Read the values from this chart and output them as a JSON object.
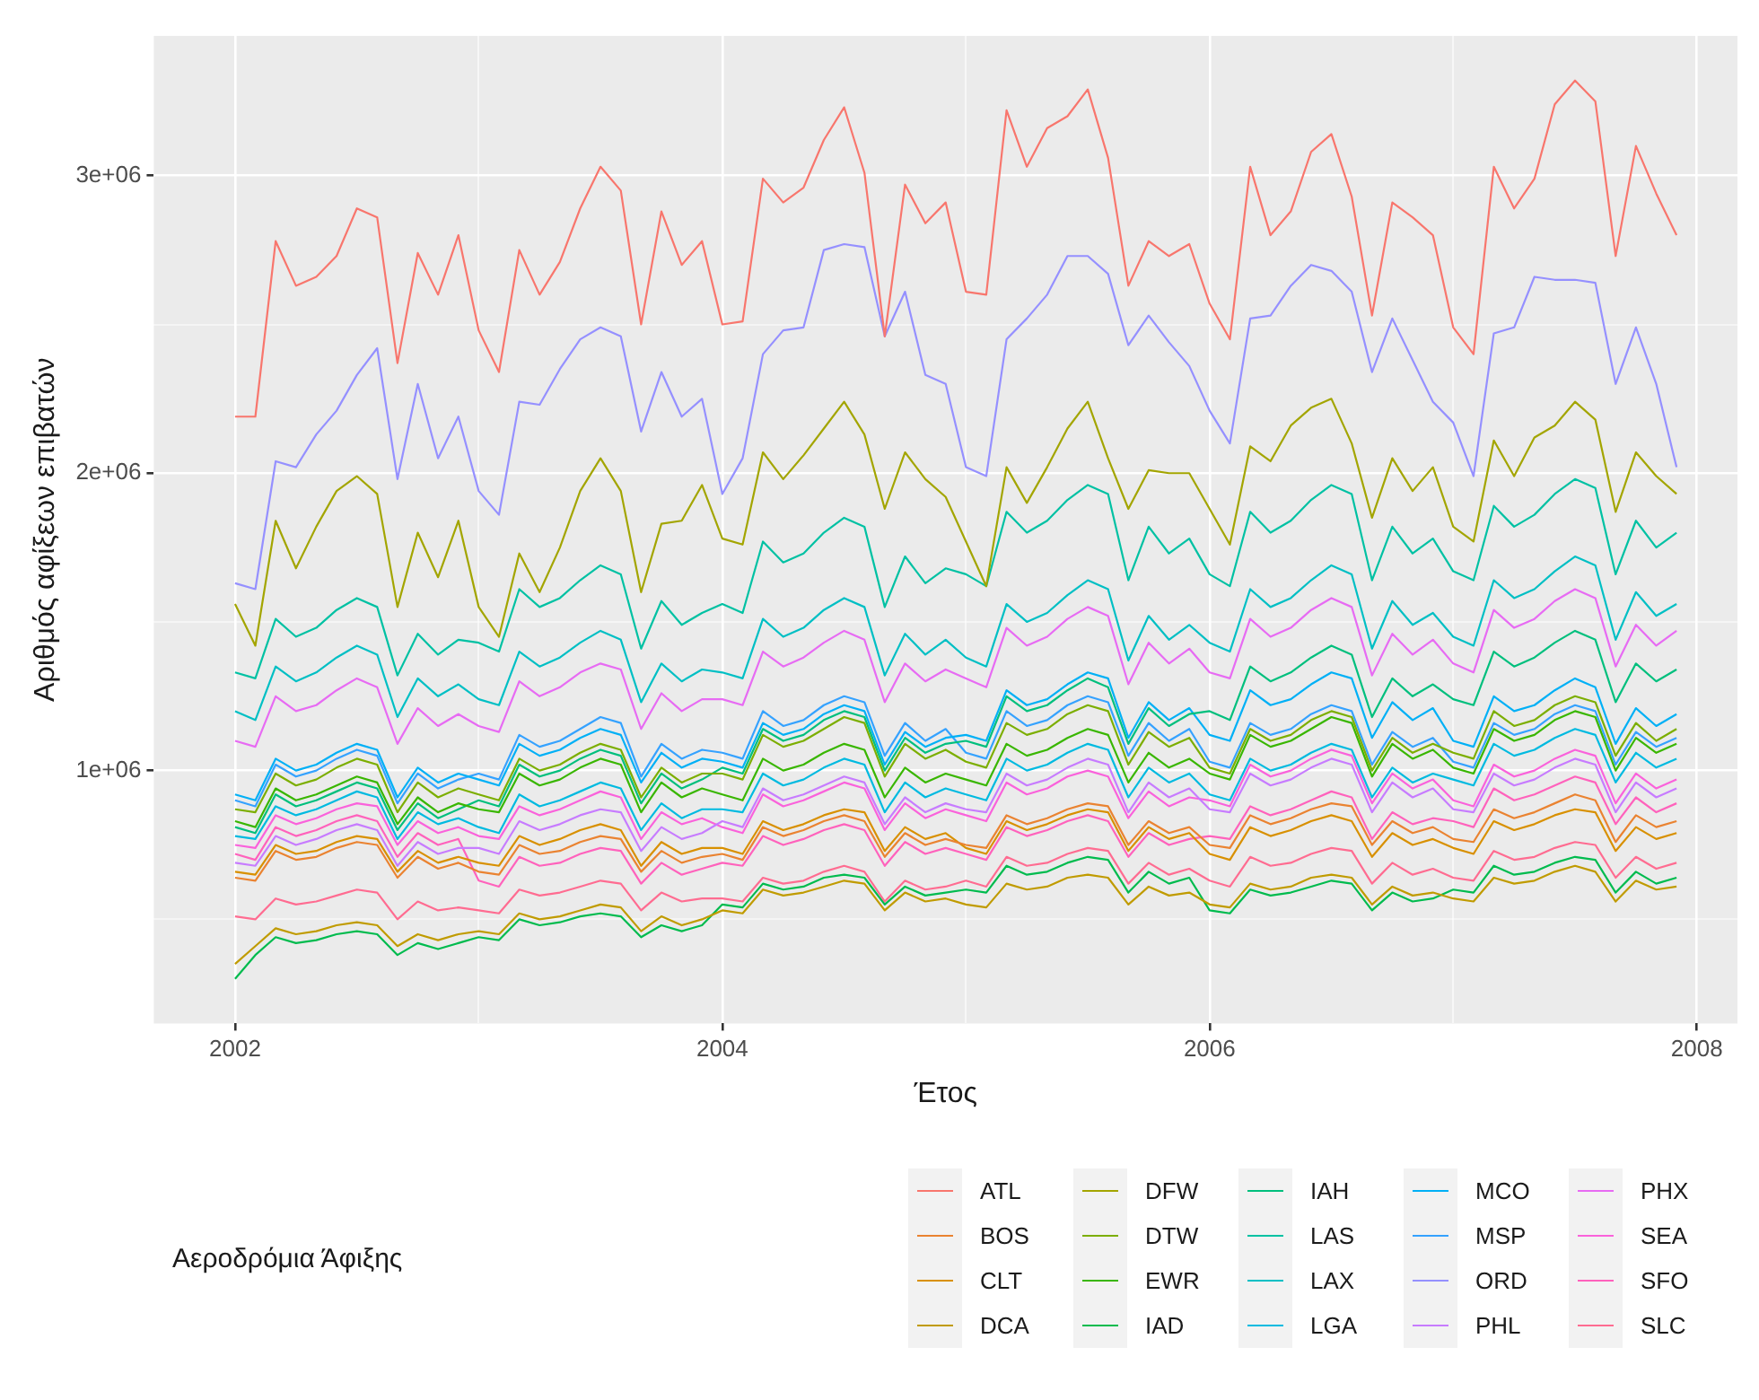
{
  "chart_data": {
    "type": "line",
    "xlabel": "Έτος",
    "ylabel": "Αριθμός αφίξεων επιβατών",
    "legend_title": "Αεροδρόμια Άφιξης",
    "legend": "bottom",
    "grid": true,
    "xlim": [
      "2001-09",
      "2008-03"
    ],
    "xticks": [
      {
        "value": "2002",
        "label": "2002"
      },
      {
        "value": "2003",
        "label": null
      },
      {
        "value": "2004",
        "label": "2004"
      },
      {
        "value": "2005",
        "label": null
      },
      {
        "value": "2006",
        "label": "2006"
      },
      {
        "value": "2007",
        "label": null
      },
      {
        "value": "2008",
        "label": "2008"
      }
    ],
    "ylim": [
      150000,
      3470000
    ],
    "yticks": [
      {
        "value": 500000,
        "label": null
      },
      {
        "value": 1000000,
        "label": "1e+06"
      },
      {
        "value": 1500000,
        "label": null
      },
      {
        "value": 2000000,
        "label": "2e+06"
      },
      {
        "value": 2500000,
        "label": null
      },
      {
        "value": 3000000,
        "label": "3e+06"
      }
    ],
    "x": [
      "2002-01",
      "2002-02",
      "2002-03",
      "2002-04",
      "2002-05",
      "2002-06",
      "2002-07",
      "2002-08",
      "2002-09",
      "2002-10",
      "2002-11",
      "2002-12",
      "2003-01",
      "2003-02",
      "2003-03",
      "2003-04",
      "2003-05",
      "2003-06",
      "2003-07",
      "2003-08",
      "2003-09",
      "2003-10",
      "2003-11",
      "2003-12",
      "2004-01",
      "2004-02",
      "2004-03",
      "2004-04",
      "2004-05",
      "2004-06",
      "2004-07",
      "2004-08",
      "2004-09",
      "2004-10",
      "2004-11",
      "2004-12",
      "2005-01",
      "2005-02",
      "2005-03",
      "2005-04",
      "2005-05",
      "2005-06",
      "2005-07",
      "2005-08",
      "2005-09",
      "2005-10",
      "2005-11",
      "2005-12",
      "2006-01",
      "2006-02",
      "2006-03",
      "2006-04",
      "2006-05",
      "2006-06",
      "2006-07",
      "2006-08",
      "2006-09",
      "2006-10",
      "2006-11",
      "2006-12",
      "2007-01",
      "2007-02",
      "2007-03",
      "2007-04",
      "2007-05",
      "2007-06",
      "2007-07",
      "2007-08",
      "2007-09",
      "2007-10",
      "2007-11",
      "2007-12"
    ],
    "series": [
      {
        "name": "ATL",
        "color": "#F8766D",
        "values": [
          2190000,
          2190000,
          2780000,
          2630000,
          2660000,
          2730000,
          2890000,
          2860000,
          2370000,
          2740000,
          2600000,
          2800000,
          2480000,
          2340000,
          2750000,
          2600000,
          2710000,
          2890000,
          3030000,
          2950000,
          2500000,
          2880000,
          2700000,
          2780000,
          2500000,
          2510000,
          2990000,
          2910000,
          2960000,
          3120000,
          3230000,
          3010000,
          2460000,
          2970000,
          2840000,
          2910000,
          2610000,
          2600000,
          3220000,
          3030000,
          3160000,
          3200000,
          3290000,
          3060000,
          2630000,
          2780000,
          2730000,
          2770000,
          2570000,
          2450000,
          3030000,
          2800000,
          2880000,
          3080000,
          3140000,
          2930000,
          2530000,
          2910000,
          2860000,
          2800000,
          2490000,
          2400000,
          3030000,
          2890000,
          2990000,
          3240000,
          3320000,
          3250000,
          2730000,
          3100000,
          2940000,
          2800000
        ]
      },
      {
        "name": "BOS",
        "color": "#EA8331",
        "values": [
          640000,
          630000,
          730000,
          700000,
          710000,
          740000,
          760000,
          750000,
          640000,
          710000,
          670000,
          690000,
          660000,
          650000,
          750000,
          720000,
          730000,
          760000,
          780000,
          770000,
          660000,
          730000,
          690000,
          710000,
          720000,
          700000,
          810000,
          780000,
          800000,
          830000,
          850000,
          830000,
          710000,
          790000,
          750000,
          770000,
          750000,
          740000,
          850000,
          820000,
          840000,
          870000,
          890000,
          880000,
          750000,
          830000,
          790000,
          810000,
          750000,
          740000,
          850000,
          820000,
          840000,
          870000,
          890000,
          880000,
          750000,
          830000,
          790000,
          810000,
          770000,
          760000,
          870000,
          840000,
          860000,
          890000,
          920000,
          900000,
          760000,
          850000,
          810000,
          830000
        ]
      },
      {
        "name": "CLT",
        "color": "#D89000",
        "values": [
          660000,
          650000,
          750000,
          720000,
          730000,
          760000,
          780000,
          770000,
          660000,
          730000,
          690000,
          710000,
          690000,
          680000,
          780000,
          750000,
          770000,
          800000,
          820000,
          800000,
          680000,
          760000,
          720000,
          740000,
          740000,
          720000,
          830000,
          800000,
          820000,
          850000,
          870000,
          860000,
          730000,
          810000,
          770000,
          790000,
          740000,
          720000,
          830000,
          800000,
          820000,
          850000,
          870000,
          860000,
          730000,
          810000,
          770000,
          790000,
          720000,
          700000,
          810000,
          780000,
          800000,
          830000,
          850000,
          830000,
          710000,
          790000,
          750000,
          770000,
          740000,
          720000,
          830000,
          800000,
          820000,
          850000,
          870000,
          860000,
          730000,
          810000,
          770000,
          790000
        ]
      },
      {
        "name": "DCA",
        "color": "#C09B00",
        "values": [
          350000,
          410000,
          470000,
          450000,
          460000,
          480000,
          490000,
          480000,
          410000,
          450000,
          430000,
          450000,
          460000,
          450000,
          520000,
          500000,
          510000,
          530000,
          550000,
          540000,
          460000,
          510000,
          480000,
          500000,
          530000,
          520000,
          600000,
          580000,
          590000,
          610000,
          630000,
          620000,
          530000,
          590000,
          560000,
          570000,
          550000,
          540000,
          620000,
          600000,
          610000,
          640000,
          650000,
          640000,
          550000,
          610000,
          580000,
          590000,
          550000,
          540000,
          620000,
          600000,
          610000,
          640000,
          650000,
          640000,
          550000,
          610000,
          580000,
          590000,
          570000,
          560000,
          640000,
          620000,
          630000,
          660000,
          680000,
          660000,
          560000,
          630000,
          600000,
          610000
        ]
      },
      {
        "name": "DFW",
        "color": "#A3A500",
        "values": [
          1560000,
          1420000,
          1840000,
          1680000,
          1820000,
          1940000,
          1990000,
          1930000,
          1550000,
          1800000,
          1650000,
          1840000,
          1550000,
          1450000,
          1730000,
          1600000,
          1750000,
          1940000,
          2050000,
          1940000,
          1600000,
          1830000,
          1840000,
          1960000,
          1780000,
          1760000,
          2070000,
          1980000,
          2060000,
          2150000,
          2240000,
          2130000,
          1880000,
          2070000,
          1980000,
          1920000,
          1770000,
          1620000,
          2020000,
          1900000,
          2020000,
          2150000,
          2240000,
          2050000,
          1880000,
          2010000,
          2000000,
          2000000,
          1880000,
          1760000,
          2090000,
          2040000,
          2160000,
          2220000,
          2250000,
          2100000,
          1850000,
          2050000,
          1940000,
          2020000,
          1820000,
          1770000,
          2110000,
          1990000,
          2120000,
          2160000,
          2240000,
          2180000,
          1870000,
          2070000,
          1990000,
          1930000
        ]
      },
      {
        "name": "DTW",
        "color": "#7CAE00",
        "values": [
          870000,
          860000,
          990000,
          950000,
          970000,
          1010000,
          1040000,
          1020000,
          860000,
          960000,
          910000,
          940000,
          920000,
          900000,
          1040000,
          1000000,
          1020000,
          1060000,
          1090000,
          1070000,
          910000,
          1010000,
          960000,
          990000,
          990000,
          970000,
          1120000,
          1080000,
          1100000,
          1140000,
          1180000,
          1160000,
          980000,
          1090000,
          1040000,
          1070000,
          1030000,
          1010000,
          1160000,
          1120000,
          1140000,
          1190000,
          1220000,
          1200000,
          1020000,
          1130000,
          1080000,
          1110000,
          1010000,
          990000,
          1140000,
          1100000,
          1120000,
          1170000,
          1200000,
          1180000,
          1000000,
          1110000,
          1060000,
          1090000,
          1060000,
          1040000,
          1200000,
          1150000,
          1170000,
          1220000,
          1250000,
          1230000,
          1050000,
          1160000,
          1100000,
          1140000
        ]
      },
      {
        "name": "EWR",
        "color": "#39B600",
        "values": [
          830000,
          810000,
          940000,
          900000,
          920000,
          950000,
          980000,
          960000,
          820000,
          910000,
          860000,
          890000,
          870000,
          860000,
          990000,
          950000,
          970000,
          1010000,
          1040000,
          1020000,
          860000,
          960000,
          910000,
          940000,
          920000,
          900000,
          1040000,
          1000000,
          1020000,
          1060000,
          1090000,
          1070000,
          910000,
          1010000,
          960000,
          990000,
          970000,
          950000,
          1090000,
          1050000,
          1070000,
          1110000,
          1140000,
          1120000,
          960000,
          1060000,
          1010000,
          1040000,
          990000,
          970000,
          1120000,
          1080000,
          1100000,
          1140000,
          1180000,
          1160000,
          980000,
          1090000,
          1040000,
          1070000,
          1010000,
          990000,
          1140000,
          1100000,
          1120000,
          1170000,
          1200000,
          1180000,
          1000000,
          1110000,
          1060000,
          1090000
        ]
      },
      {
        "name": "IAD",
        "color": "#00BB4E",
        "values": [
          300000,
          380000,
          440000,
          420000,
          430000,
          450000,
          460000,
          450000,
          380000,
          420000,
          400000,
          420000,
          440000,
          430000,
          500000,
          480000,
          490000,
          510000,
          520000,
          510000,
          440000,
          480000,
          460000,
          480000,
          550000,
          540000,
          620000,
          600000,
          610000,
          640000,
          650000,
          640000,
          550000,
          610000,
          580000,
          590000,
          600000,
          590000,
          680000,
          650000,
          660000,
          690000,
          710000,
          700000,
          590000,
          660000,
          620000,
          640000,
          530000,
          520000,
          600000,
          580000,
          590000,
          610000,
          630000,
          620000,
          530000,
          590000,
          560000,
          570000,
          600000,
          590000,
          680000,
          650000,
          660000,
          690000,
          710000,
          700000,
          590000,
          660000,
          620000,
          640000
        ]
      },
      {
        "name": "IAH",
        "color": "#00BF7D",
        "values": [
          810000,
          790000,
          920000,
          880000,
          900000,
          930000,
          960000,
          940000,
          800000,
          890000,
          840000,
          870000,
          900000,
          880000,
          1020000,
          980000,
          1000000,
          1040000,
          1070000,
          1050000,
          890000,
          990000,
          940000,
          970000,
          1010000,
          990000,
          1140000,
          1100000,
          1120000,
          1170000,
          1200000,
          1180000,
          1000000,
          1110000,
          1060000,
          1090000,
          1100000,
          1080000,
          1250000,
          1200000,
          1220000,
          1270000,
          1310000,
          1280000,
          1090000,
          1210000,
          1150000,
          1190000,
          1200000,
          1170000,
          1350000,
          1300000,
          1330000,
          1380000,
          1420000,
          1390000,
          1180000,
          1310000,
          1250000,
          1290000,
          1240000,
          1220000,
          1400000,
          1350000,
          1380000,
          1430000,
          1470000,
          1440000,
          1230000,
          1360000,
          1300000,
          1340000
        ]
      },
      {
        "name": "LAS",
        "color": "#00C1A3",
        "values": [
          1330000,
          1310000,
          1510000,
          1450000,
          1480000,
          1540000,
          1580000,
          1550000,
          1320000,
          1460000,
          1390000,
          1440000,
          1430000,
          1400000,
          1610000,
          1550000,
          1580000,
          1640000,
          1690000,
          1660000,
          1410000,
          1570000,
          1490000,
          1530000,
          1560000,
          1530000,
          1770000,
          1700000,
          1730000,
          1800000,
          1850000,
          1820000,
          1550000,
          1720000,
          1630000,
          1680000,
          1660000,
          1620000,
          1870000,
          1800000,
          1840000,
          1910000,
          1960000,
          1930000,
          1640000,
          1820000,
          1730000,
          1780000,
          1660000,
          1620000,
          1870000,
          1800000,
          1840000,
          1910000,
          1960000,
          1930000,
          1640000,
          1820000,
          1730000,
          1780000,
          1670000,
          1640000,
          1890000,
          1820000,
          1860000,
          1930000,
          1980000,
          1950000,
          1660000,
          1840000,
          1750000,
          1800000
        ]
      },
      {
        "name": "LAX",
        "color": "#00BFC4",
        "values": [
          1200000,
          1170000,
          1350000,
          1300000,
          1330000,
          1380000,
          1420000,
          1390000,
          1180000,
          1310000,
          1250000,
          1290000,
          1240000,
          1220000,
          1400000,
          1350000,
          1380000,
          1430000,
          1470000,
          1440000,
          1230000,
          1360000,
          1300000,
          1340000,
          1330000,
          1310000,
          1510000,
          1450000,
          1480000,
          1540000,
          1580000,
          1550000,
          1320000,
          1460000,
          1390000,
          1440000,
          1380000,
          1350000,
          1560000,
          1500000,
          1530000,
          1590000,
          1640000,
          1610000,
          1370000,
          1520000,
          1440000,
          1490000,
          1430000,
          1400000,
          1610000,
          1550000,
          1580000,
          1640000,
          1690000,
          1660000,
          1410000,
          1570000,
          1490000,
          1530000,
          1450000,
          1420000,
          1640000,
          1580000,
          1610000,
          1670000,
          1720000,
          1690000,
          1440000,
          1600000,
          1520000,
          1560000
        ]
      },
      {
        "name": "LGA",
        "color": "#00BAE0",
        "values": [
          780000,
          770000,
          880000,
          850000,
          870000,
          900000,
          930000,
          910000,
          770000,
          860000,
          820000,
          840000,
          810000,
          790000,
          920000,
          880000,
          900000,
          930000,
          960000,
          940000,
          800000,
          890000,
          840000,
          870000,
          870000,
          860000,
          990000,
          950000,
          970000,
          1010000,
          1040000,
          1020000,
          860000,
          960000,
          910000,
          940000,
          920000,
          900000,
          1040000,
          1000000,
          1020000,
          1060000,
          1090000,
          1070000,
          910000,
          1010000,
          960000,
          990000,
          920000,
          900000,
          1040000,
          1000000,
          1020000,
          1060000,
          1090000,
          1070000,
          910000,
          1010000,
          960000,
          990000,
          970000,
          950000,
          1090000,
          1050000,
          1070000,
          1110000,
          1140000,
          1120000,
          960000,
          1060000,
          1010000,
          1040000
        ]
      },
      {
        "name": "MCO",
        "color": "#00B0F6",
        "values": [
          920000,
          900000,
          1040000,
          1000000,
          1020000,
          1060000,
          1090000,
          1070000,
          910000,
          1010000,
          960000,
          990000,
          970000,
          950000,
          1090000,
          1050000,
          1070000,
          1110000,
          1140000,
          1120000,
          960000,
          1060000,
          1010000,
          1040000,
          1030000,
          1010000,
          1160000,
          1120000,
          1140000,
          1190000,
          1220000,
          1200000,
          1020000,
          1130000,
          1080000,
          1110000,
          1120000,
          1100000,
          1270000,
          1220000,
          1240000,
          1290000,
          1330000,
          1310000,
          1110000,
          1230000,
          1170000,
          1210000,
          1120000,
          1100000,
          1270000,
          1220000,
          1240000,
          1290000,
          1330000,
          1310000,
          1110000,
          1230000,
          1170000,
          1210000,
          1100000,
          1080000,
          1250000,
          1200000,
          1220000,
          1270000,
          1310000,
          1280000,
          1090000,
          1210000,
          1150000,
          1190000
        ]
      },
      {
        "name": "MSP",
        "color": "#35A2FF",
        "values": [
          900000,
          880000,
          1020000,
          980000,
          1000000,
          1040000,
          1070000,
          1050000,
          890000,
          990000,
          940000,
          970000,
          990000,
          970000,
          1120000,
          1080000,
          1100000,
          1140000,
          1180000,
          1160000,
          980000,
          1090000,
          1040000,
          1070000,
          1060000,
          1040000,
          1200000,
          1150000,
          1170000,
          1220000,
          1250000,
          1230000,
          1050000,
          1160000,
          1100000,
          1140000,
          1060000,
          1040000,
          1200000,
          1150000,
          1170000,
          1220000,
          1250000,
          1230000,
          1050000,
          1160000,
          1100000,
          1140000,
          1030000,
          1010000,
          1160000,
          1120000,
          1140000,
          1190000,
          1220000,
          1200000,
          1020000,
          1130000,
          1080000,
          1110000,
          1030000,
          1010000,
          1160000,
          1120000,
          1140000,
          1190000,
          1220000,
          1200000,
          1020000,
          1130000,
          1080000,
          1110000
        ]
      },
      {
        "name": "ORD",
        "color": "#9590FF",
        "values": [
          1630000,
          1610000,
          2040000,
          2020000,
          2130000,
          2210000,
          2330000,
          2420000,
          1980000,
          2300000,
          2050000,
          2190000,
          1940000,
          1860000,
          2240000,
          2230000,
          2350000,
          2450000,
          2490000,
          2460000,
          2140000,
          2340000,
          2190000,
          2250000,
          1930000,
          2050000,
          2400000,
          2480000,
          2490000,
          2750000,
          2770000,
          2760000,
          2460000,
          2610000,
          2330000,
          2300000,
          2020000,
          1990000,
          2450000,
          2520000,
          2600000,
          2730000,
          2730000,
          2670000,
          2430000,
          2530000,
          2440000,
          2360000,
          2210000,
          2100000,
          2520000,
          2530000,
          2630000,
          2700000,
          2680000,
          2610000,
          2340000,
          2520000,
          2380000,
          2240000,
          2170000,
          1990000,
          2470000,
          2490000,
          2660000,
          2650000,
          2650000,
          2640000,
          2300000,
          2490000,
          2300000,
          2020000
        ]
      },
      {
        "name": "PHL",
        "color": "#C77CFF",
        "values": [
          690000,
          680000,
          780000,
          750000,
          770000,
          800000,
          820000,
          800000,
          680000,
          760000,
          720000,
          740000,
          740000,
          720000,
          830000,
          800000,
          820000,
          850000,
          870000,
          860000,
          730000,
          810000,
          770000,
          790000,
          830000,
          810000,
          940000,
          900000,
          920000,
          950000,
          980000,
          960000,
          820000,
          910000,
          860000,
          890000,
          870000,
          860000,
          990000,
          950000,
          970000,
          1010000,
          1040000,
          1020000,
          860000,
          960000,
          910000,
          940000,
          870000,
          860000,
          990000,
          950000,
          970000,
          1010000,
          1040000,
          1020000,
          860000,
          960000,
          910000,
          940000,
          870000,
          860000,
          990000,
          950000,
          970000,
          1010000,
          1040000,
          1020000,
          860000,
          960000,
          910000,
          940000
        ]
      },
      {
        "name": "PHX",
        "color": "#E76BF3",
        "values": [
          1100000,
          1080000,
          1250000,
          1200000,
          1220000,
          1270000,
          1310000,
          1280000,
          1090000,
          1210000,
          1150000,
          1190000,
          1150000,
          1130000,
          1300000,
          1250000,
          1280000,
          1330000,
          1360000,
          1340000,
          1140000,
          1260000,
          1200000,
          1240000,
          1240000,
          1220000,
          1400000,
          1350000,
          1380000,
          1430000,
          1470000,
          1440000,
          1230000,
          1360000,
          1300000,
          1340000,
          1310000,
          1280000,
          1480000,
          1420000,
          1450000,
          1510000,
          1550000,
          1520000,
          1290000,
          1430000,
          1360000,
          1410000,
          1330000,
          1310000,
          1510000,
          1450000,
          1480000,
          1540000,
          1580000,
          1550000,
          1320000,
          1460000,
          1390000,
          1440000,
          1360000,
          1330000,
          1540000,
          1480000,
          1510000,
          1570000,
          1610000,
          1580000,
          1350000,
          1490000,
          1420000,
          1470000
        ]
      },
      {
        "name": "SEA",
        "color": "#FA62DB",
        "values": [
          750000,
          740000,
          850000,
          820000,
          840000,
          870000,
          890000,
          880000,
          750000,
          830000,
          790000,
          810000,
          780000,
          770000,
          880000,
          850000,
          870000,
          900000,
          930000,
          910000,
          770000,
          860000,
          820000,
          840000,
          810000,
          790000,
          920000,
          880000,
          900000,
          930000,
          960000,
          940000,
          800000,
          890000,
          840000,
          870000,
          850000,
          830000,
          960000,
          920000,
          940000,
          980000,
          1000000,
          980000,
          840000,
          930000,
          880000,
          910000,
          900000,
          880000,
          1020000,
          980000,
          1000000,
          1040000,
          1070000,
          1050000,
          890000,
          990000,
          940000,
          970000,
          900000,
          880000,
          1020000,
          980000,
          1000000,
          1040000,
          1070000,
          1050000,
          890000,
          990000,
          940000,
          970000
        ]
      },
      {
        "name": "SFO",
        "color": "#FF62BC",
        "values": [
          720000,
          700000,
          810000,
          780000,
          800000,
          830000,
          850000,
          830000,
          710000,
          790000,
          750000,
          770000,
          630000,
          610000,
          710000,
          680000,
          690000,
          720000,
          740000,
          730000,
          620000,
          690000,
          650000,
          670000,
          690000,
          680000,
          780000,
          750000,
          770000,
          800000,
          820000,
          800000,
          680000,
          760000,
          720000,
          740000,
          720000,
          700000,
          810000,
          780000,
          800000,
          830000,
          850000,
          830000,
          710000,
          790000,
          750000,
          770000,
          780000,
          770000,
          880000,
          850000,
          870000,
          900000,
          930000,
          910000,
          770000,
          860000,
          820000,
          840000,
          830000,
          810000,
          940000,
          900000,
          920000,
          950000,
          980000,
          960000,
          820000,
          910000,
          860000,
          890000
        ]
      },
      {
        "name": "SLC",
        "color": "#FF6C91",
        "values": [
          510000,
          500000,
          570000,
          550000,
          560000,
          580000,
          600000,
          590000,
          500000,
          560000,
          530000,
          540000,
          530000,
          520000,
          600000,
          580000,
          590000,
          610000,
          630000,
          620000,
          530000,
          590000,
          560000,
          570000,
          570000,
          560000,
          640000,
          620000,
          630000,
          660000,
          680000,
          660000,
          560000,
          630000,
          600000,
          610000,
          630000,
          610000,
          710000,
          680000,
          690000,
          720000,
          740000,
          730000,
          620000,
          690000,
          650000,
          670000,
          630000,
          610000,
          710000,
          680000,
          690000,
          720000,
          740000,
          730000,
          620000,
          690000,
          650000,
          670000,
          640000,
          630000,
          730000,
          700000,
          710000,
          740000,
          760000,
          750000,
          640000,
          710000,
          670000,
          690000
        ]
      }
    ]
  }
}
